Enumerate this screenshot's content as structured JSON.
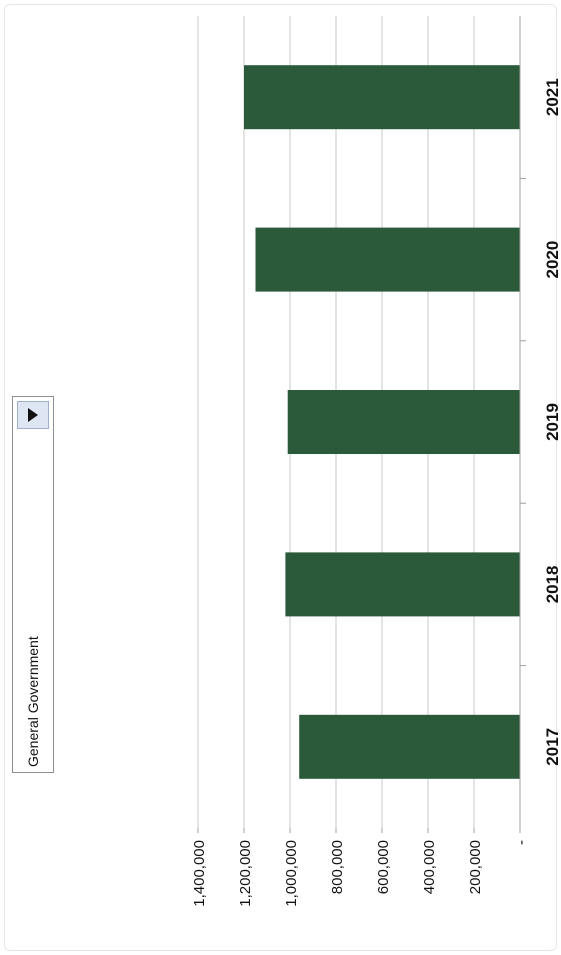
{
  "dropdown": {
    "selected": "General Government"
  },
  "colors": {
    "bar": "#2b5a3b",
    "grid": "#c8c8c8",
    "axis": "#a0a0a0",
    "text": "#111111"
  },
  "chart_data": {
    "type": "bar",
    "orientation": "vertical-bars-rotated-page",
    "categories": [
      "2017",
      "2018",
      "2019",
      "2020",
      "2021"
    ],
    "values": [
      960000,
      1020000,
      1010000,
      1150000,
      1200000
    ],
    "ylim": [
      0,
      1400000
    ],
    "ticks": [
      {
        "value": 0,
        "label": "-"
      },
      {
        "value": 200000,
        "label": "200,000"
      },
      {
        "value": 400000,
        "label": "400,000"
      },
      {
        "value": 600000,
        "label": "600,000"
      },
      {
        "value": 800000,
        "label": "800,000"
      },
      {
        "value": 1000000,
        "label": "1,000,000"
      },
      {
        "value": 1200000,
        "label": "1,200,000"
      },
      {
        "value": 1400000,
        "label": "1,400,000"
      }
    ],
    "grid": true,
    "title": "",
    "xlabel": "",
    "ylabel": ""
  }
}
